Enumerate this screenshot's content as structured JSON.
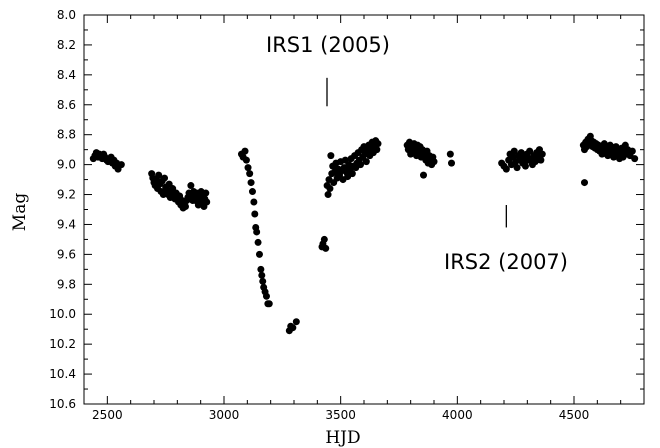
{
  "chart_data": {
    "type": "scatter",
    "title": "",
    "xlabel": "HJD",
    "ylabel": "Mag",
    "xlim": [
      2400,
      4800
    ],
    "ylim": [
      10.6,
      8.0
    ],
    "y_inverted": true,
    "grid": false,
    "x_ticks": [
      2500,
      3000,
      3500,
      4000,
      4500
    ],
    "y_ticks": [
      8.0,
      8.2,
      8.4,
      8.6,
      8.8,
      9.0,
      9.2,
      9.4,
      9.6,
      9.8,
      10.0,
      10.2,
      10.4,
      10.6
    ],
    "x_tick_labels": [
      "2500",
      "3000",
      "3500",
      "4000",
      "4500"
    ],
    "y_tick_labels": [
      "8.0",
      "8.2",
      "8.4",
      "8.6",
      "8.8",
      "9.0",
      "9.2",
      "9.4",
      "9.6",
      "9.8",
      "10.0",
      "10.2",
      "10.4",
      "10.6"
    ],
    "annotations": [
      {
        "text": "IRS1 (2005)",
        "x": 3450,
        "y_marker_top": 8.61,
        "y_marker_bottom": 8.42
      },
      {
        "text": "IRS2 (2007)",
        "x": 4210,
        "y_marker_top": 9.27,
        "y_marker_bottom": 9.42
      }
    ],
    "marker_color": "#000000",
    "points": [
      [
        2440,
        8.96
      ],
      [
        2447,
        8.94
      ],
      [
        2453,
        8.92
      ],
      [
        2460,
        8.95
      ],
      [
        2466,
        8.93
      ],
      [
        2472,
        8.94
      ],
      [
        2478,
        8.96
      ],
      [
        2484,
        8.93
      ],
      [
        2490,
        8.95
      ],
      [
        2497,
        8.97
      ],
      [
        2503,
        8.98
      ],
      [
        2510,
        8.96
      ],
      [
        2516,
        8.95
      ],
      [
        2522,
        8.99
      ],
      [
        2528,
        8.97
      ],
      [
        2534,
        9.01
      ],
      [
        2540,
        8.99
      ],
      [
        2546,
        9.03
      ],
      [
        2560,
        9.0
      ],
      [
        2690,
        9.06
      ],
      [
        2695,
        9.09
      ],
      [
        2700,
        9.12
      ],
      [
        2705,
        9.14
      ],
      [
        2710,
        9.1
      ],
      [
        2715,
        9.16
      ],
      [
        2720,
        9.07
      ],
      [
        2725,
        9.13
      ],
      [
        2730,
        9.18
      ],
      [
        2735,
        9.11
      ],
      [
        2740,
        9.2
      ],
      [
        2745,
        9.09
      ],
      [
        2750,
        9.15
      ],
      [
        2755,
        9.17
      ],
      [
        2760,
        9.2
      ],
      [
        2765,
        9.13
      ],
      [
        2770,
        9.22
      ],
      [
        2775,
        9.18
      ],
      [
        2780,
        9.16
      ],
      [
        2785,
        9.21
      ],
      [
        2790,
        9.23
      ],
      [
        2795,
        9.19
      ],
      [
        2800,
        9.22
      ],
      [
        2805,
        9.25
      ],
      [
        2810,
        9.21
      ],
      [
        2815,
        9.27
      ],
      [
        2820,
        9.24
      ],
      [
        2825,
        9.29
      ],
      [
        2830,
        9.26
      ],
      [
        2835,
        9.28
      ],
      [
        2840,
        9.24
      ],
      [
        2845,
        9.22
      ],
      [
        2850,
        9.19
      ],
      [
        2855,
        9.22
      ],
      [
        2858,
        9.14
      ],
      [
        2862,
        9.2
      ],
      [
        2866,
        9.24
      ],
      [
        2870,
        9.18
      ],
      [
        2874,
        9.21
      ],
      [
        2878,
        9.24
      ],
      [
        2882,
        9.19
      ],
      [
        2886,
        9.22
      ],
      [
        2890,
        9.27
      ],
      [
        2894,
        9.2
      ],
      [
        2898,
        9.23
      ],
      [
        2902,
        9.18
      ],
      [
        2906,
        9.25
      ],
      [
        2910,
        9.21
      ],
      [
        2914,
        9.28
      ],
      [
        2918,
        9.23
      ],
      [
        2922,
        9.19
      ],
      [
        2926,
        9.25
      ],
      [
        3075,
        8.93
      ],
      [
        3082,
        8.95
      ],
      [
        3090,
        8.91
      ],
      [
        3096,
        8.97
      ],
      [
        3103,
        9.02
      ],
      [
        3110,
        9.06
      ],
      [
        3116,
        9.12
      ],
      [
        3122,
        9.18
      ],
      [
        3128,
        9.25
      ],
      [
        3132,
        9.33
      ],
      [
        3136,
        9.42
      ],
      [
        3140,
        9.45
      ],
      [
        3146,
        9.52
      ],
      [
        3152,
        9.6
      ],
      [
        3158,
        9.7
      ],
      [
        3162,
        9.74
      ],
      [
        3166,
        9.78
      ],
      [
        3170,
        9.82
      ],
      [
        3176,
        9.85
      ],
      [
        3182,
        9.88
      ],
      [
        3188,
        9.93
      ],
      [
        3194,
        9.93
      ],
      [
        3280,
        10.11
      ],
      [
        3286,
        10.08
      ],
      [
        3295,
        10.09
      ],
      [
        3310,
        10.05
      ],
      [
        3420,
        9.55
      ],
      [
        3424,
        9.53
      ],
      [
        3430,
        9.5
      ],
      [
        3436,
        9.56
      ],
      [
        3442,
        9.14
      ],
      [
        3446,
        9.2
      ],
      [
        3450,
        9.1
      ],
      [
        3454,
        9.16
      ],
      [
        3458,
        8.94
      ],
      [
        3462,
        9.06
      ],
      [
        3466,
        9.01
      ],
      [
        3470,
        9.12
      ],
      [
        3475,
        9.05
      ],
      [
        3480,
        8.99
      ],
      [
        3485,
        9.09
      ],
      [
        3490,
        9.03
      ],
      [
        3495,
        9.07
      ],
      [
        3500,
        8.98
      ],
      [
        3505,
        9.04
      ],
      [
        3510,
        9.1
      ],
      [
        3515,
        9.02
      ],
      [
        3520,
        8.97
      ],
      [
        3525,
        9.05
      ],
      [
        3530,
        9.08
      ],
      [
        3535,
        9.0
      ],
      [
        3540,
        9.03
      ],
      [
        3545,
        8.96
      ],
      [
        3550,
        9.06
      ],
      [
        3555,
        9.01
      ],
      [
        3560,
        8.94
      ],
      [
        3565,
        9.02
      ],
      [
        3570,
        8.99
      ],
      [
        3575,
        8.92
      ],
      [
        3580,
        8.97
      ],
      [
        3585,
        9.0
      ],
      [
        3590,
        8.9
      ],
      [
        3595,
        8.95
      ],
      [
        3600,
        8.88
      ],
      [
        3605,
        8.93
      ],
      [
        3610,
        8.98
      ],
      [
        3615,
        8.91
      ],
      [
        3620,
        8.87
      ],
      [
        3625,
        8.94
      ],
      [
        3630,
        8.89
      ],
      [
        3635,
        8.85
      ],
      [
        3640,
        8.92
      ],
      [
        3645,
        8.88
      ],
      [
        3650,
        8.84
      ],
      [
        3655,
        8.9
      ],
      [
        3660,
        8.86
      ],
      [
        3785,
        8.87
      ],
      [
        3790,
        8.9
      ],
      [
        3795,
        8.85
      ],
      [
        3800,
        8.93
      ],
      [
        3805,
        8.88
      ],
      [
        3810,
        8.91
      ],
      [
        3815,
        8.86
      ],
      [
        3820,
        8.89
      ],
      [
        3825,
        8.94
      ],
      [
        3830,
        8.87
      ],
      [
        3835,
        8.92
      ],
      [
        3840,
        8.88
      ],
      [
        3845,
        8.95
      ],
      [
        3850,
        8.9
      ],
      [
        3855,
        9.07
      ],
      [
        3860,
        8.93
      ],
      [
        3865,
        8.97
      ],
      [
        3870,
        8.91
      ],
      [
        3875,
        8.99
      ],
      [
        3880,
        8.94
      ],
      [
        3885,
        8.96
      ],
      [
        3890,
        9.0
      ],
      [
        3895,
        8.95
      ],
      [
        3900,
        8.98
      ],
      [
        3970,
        8.93
      ],
      [
        3975,
        8.99
      ],
      [
        4190,
        8.99
      ],
      [
        4200,
        9.01
      ],
      [
        4210,
        9.03
      ],
      [
        4220,
        8.97
      ],
      [
        4226,
        8.93
      ],
      [
        4232,
        9.0
      ],
      [
        4238,
        8.95
      ],
      [
        4244,
        8.91
      ],
      [
        4250,
        8.98
      ],
      [
        4256,
        9.02
      ],
      [
        4262,
        8.94
      ],
      [
        4268,
        8.97
      ],
      [
        4274,
        8.92
      ],
      [
        4280,
        8.99
      ],
      [
        4286,
        8.95
      ],
      [
        4292,
        9.01
      ],
      [
        4298,
        8.93
      ],
      [
        4304,
        8.97
      ],
      [
        4310,
        8.91
      ],
      [
        4316,
        8.96
      ],
      [
        4322,
        9.0
      ],
      [
        4328,
        8.94
      ],
      [
        4334,
        8.98
      ],
      [
        4340,
        8.92
      ],
      [
        4346,
        8.95
      ],
      [
        4352,
        8.9
      ],
      [
        4358,
        8.97
      ],
      [
        4364,
        8.93
      ],
      [
        4540,
        8.87
      ],
      [
        4545,
        8.9
      ],
      [
        4550,
        8.85
      ],
      [
        4555,
        8.88
      ],
      [
        4560,
        8.83
      ],
      [
        4565,
        8.86
      ],
      [
        4570,
        8.81
      ],
      [
        4575,
        8.84
      ],
      [
        4580,
        8.88
      ],
      [
        4585,
        8.85
      ],
      [
        4590,
        8.89
      ],
      [
        4595,
        8.86
      ],
      [
        4600,
        8.9
      ],
      [
        4605,
        8.87
      ],
      [
        4610,
        8.91
      ],
      [
        4615,
        8.88
      ],
      [
        4620,
        8.93
      ],
      [
        4625,
        8.89
      ],
      [
        4630,
        8.86
      ],
      [
        4635,
        8.92
      ],
      [
        4640,
        8.88
      ],
      [
        4645,
        8.94
      ],
      [
        4650,
        8.9
      ],
      [
        4655,
        8.87
      ],
      [
        4660,
        8.93
      ],
      [
        4665,
        8.89
      ],
      [
        4670,
        8.95
      ],
      [
        4675,
        8.91
      ],
      [
        4680,
        8.88
      ],
      [
        4685,
        8.94
      ],
      [
        4690,
        8.9
      ],
      [
        4695,
        8.96
      ],
      [
        4700,
        8.92
      ],
      [
        4705,
        8.89
      ],
      [
        4710,
        8.95
      ],
      [
        4715,
        8.91
      ],
      [
        4720,
        8.87
      ],
      [
        4725,
        8.93
      ],
      [
        4730,
        8.9
      ],
      [
        4740,
        8.94
      ],
      [
        4750,
        8.91
      ],
      [
        4760,
        8.96
      ],
      [
        4545,
        9.12
      ]
    ]
  }
}
